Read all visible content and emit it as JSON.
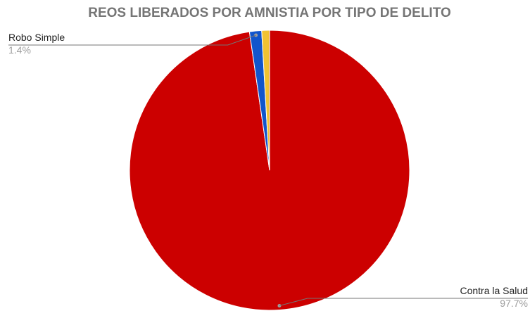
{
  "chart_data": {
    "type": "pie",
    "title": "REOS LIBERADOS POR AMNISTIA POR TIPO DE DELITO",
    "slices": [
      {
        "label": "Contra la Salud",
        "value": 97.7,
        "percent_label": "97.7%",
        "color": "#cc0000",
        "show_label": true
      },
      {
        "label": "Robo Simple",
        "value": 1.4,
        "percent_label": "1.4%",
        "color": "#1155cc",
        "show_label": true
      },
      {
        "label": "",
        "value": 0.9,
        "percent_label": "",
        "color": "#f1c232",
        "show_label": false
      }
    ],
    "start_angle_deg": 0,
    "direction": "clockwise",
    "legend": "none",
    "label_style": "callout lines with name and percentage"
  }
}
